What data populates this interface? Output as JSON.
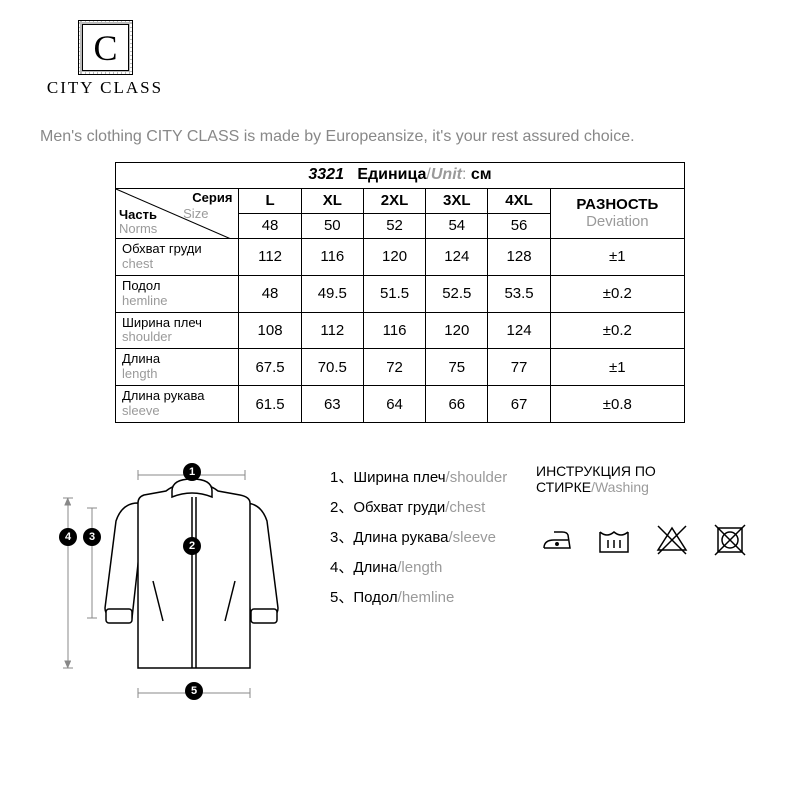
{
  "brand": "CITY CLASS",
  "logo_letter": "C",
  "tagline": "Men's clothing CITY CLASS is made by Europeansize, it's your rest assured choice.",
  "table": {
    "title_number": "3321",
    "title_unit_ru": "Единица",
    "title_unit_en": "Unit",
    "title_unit_val": "см",
    "corner": {
      "part_ru": "Часть",
      "part_en": "Norms",
      "series_ru": "Серия",
      "series_en": "Size"
    },
    "size_labels": [
      "L",
      "XL",
      "2XL",
      "3XL",
      "4XL"
    ],
    "deviation_ru": "РАЗНОСТЬ",
    "deviation_en": "Deviation",
    "size_nums": [
      "48",
      "50",
      "52",
      "54",
      "56"
    ],
    "rows": [
      {
        "ru": "Обхват груди",
        "en": "chest",
        "vals": [
          "112",
          "116",
          "120",
          "124",
          "128"
        ],
        "dev": "±1"
      },
      {
        "ru": "Подол",
        "en": "hemline",
        "vals": [
          "48",
          "49.5",
          "51.5",
          "52.5",
          "53.5"
        ],
        "dev": "±0.2"
      },
      {
        "ru": "Ширина плеч",
        "en": "shoulder",
        "vals": [
          "108",
          "112",
          "116",
          "120",
          "124"
        ],
        "dev": "±0.2"
      },
      {
        "ru": "Длина",
        "en": "length",
        "vals": [
          "67.5",
          "70.5",
          "72",
          "75",
          "77"
        ],
        "dev": "±1"
      },
      {
        "ru": "Длина рукава",
        "en": "sleeve",
        "vals": [
          "61.5",
          "63",
          "64",
          "66",
          "67"
        ],
        "dev": "±0.8"
      }
    ]
  },
  "legend": [
    {
      "n": "1",
      "ru": "Ширина плеч",
      "en": "shoulder"
    },
    {
      "n": "2",
      "ru": "Обхват груди",
      "en": "chest"
    },
    {
      "n": "3",
      "ru": "Длина рукава",
      "en": "sleeve"
    },
    {
      "n": "4",
      "ru": "Длина",
      "en": "length"
    },
    {
      "n": "5",
      "ru": "Подол",
      "en": "hemline"
    }
  ],
  "washing": {
    "title_ru": "ИНСТРУКЦИЯ ПО СТИРКЕ",
    "title_en": "Washing"
  },
  "colors": {
    "text_gray": "#9a9a9a",
    "line": "#000000",
    "dim_gray": "#888888"
  }
}
